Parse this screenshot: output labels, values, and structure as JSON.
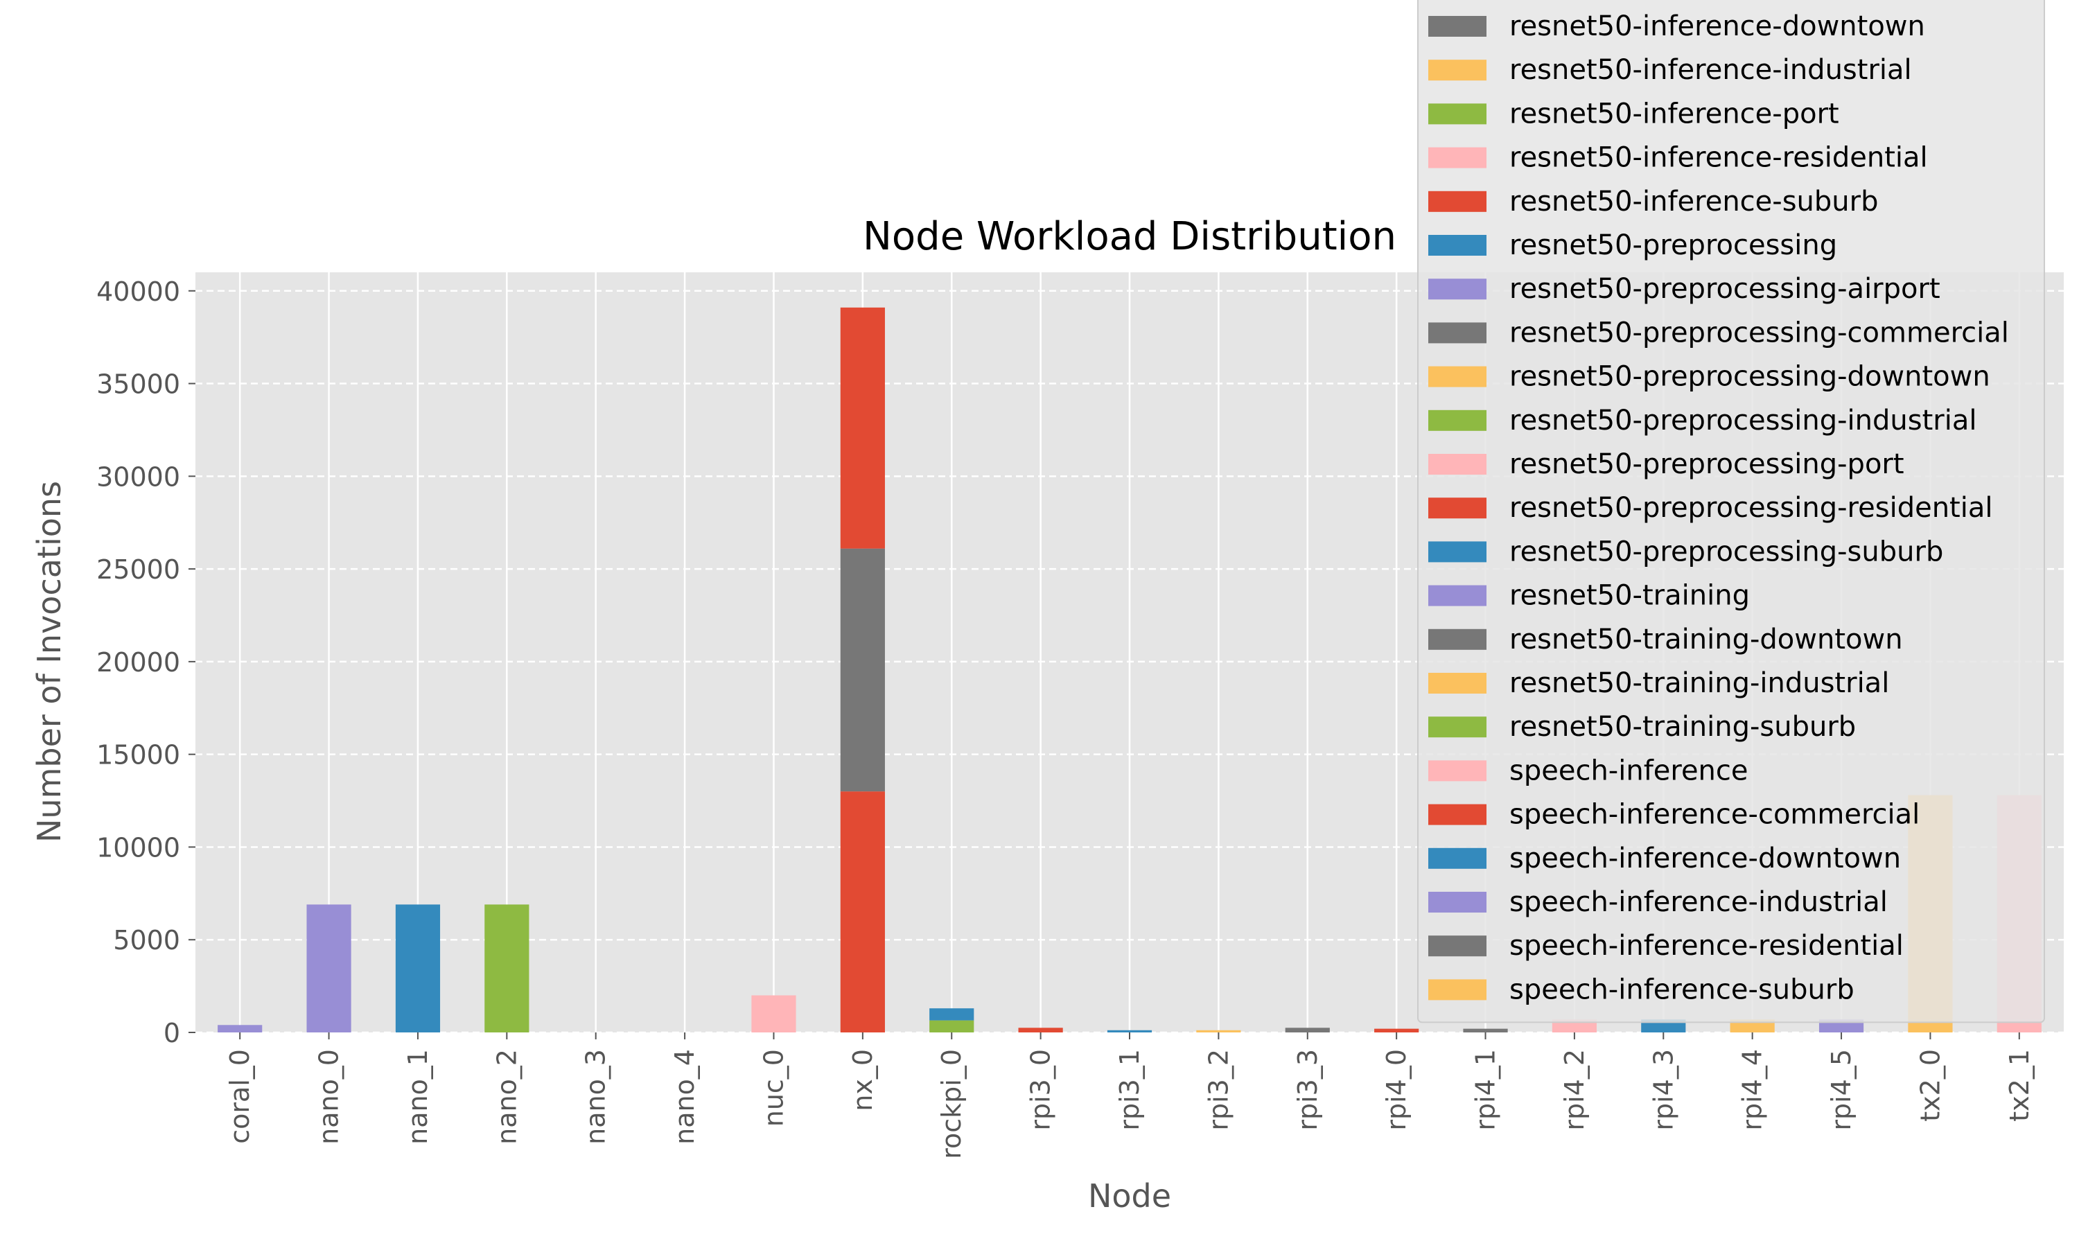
{
  "chart_data": {
    "type": "bar",
    "stacked": true,
    "title": "Node Workload Distribution",
    "xlabel": "Node",
    "ylabel": "Number of Invocations",
    "ylim": [
      0,
      41000
    ],
    "yticks": [
      0,
      5000,
      10000,
      15000,
      20000,
      25000,
      30000,
      35000,
      40000
    ],
    "grid": true,
    "legend_position": "upper-right",
    "categories": [
      "coral_0",
      "nano_0",
      "nano_1",
      "nano_2",
      "nano_3",
      "nano_4",
      "nuc_0",
      "nx_0",
      "rockpi_0",
      "rpi3_0",
      "rpi3_1",
      "rpi3_2",
      "rpi3_3",
      "rpi4_0",
      "rpi4_1",
      "rpi4_2",
      "rpi4_3",
      "rpi4_4",
      "rpi4_5",
      "tx2_0",
      "tx2_1"
    ],
    "legend_entries": [
      {
        "name": "resnet50-inference-downtown",
        "color": "#777777"
      },
      {
        "name": "resnet50-inference-industrial",
        "color": "#FBC15E"
      },
      {
        "name": "resnet50-inference-port",
        "color": "#8EBA42"
      },
      {
        "name": "resnet50-inference-residential",
        "color": "#FFB5B8"
      },
      {
        "name": "resnet50-inference-suburb",
        "color": "#E24A33"
      },
      {
        "name": "resnet50-preprocessing",
        "color": "#348ABD"
      },
      {
        "name": "resnet50-preprocessing-airport",
        "color": "#988ED5"
      },
      {
        "name": "resnet50-preprocessing-commercial",
        "color": "#777777"
      },
      {
        "name": "resnet50-preprocessing-downtown",
        "color": "#FBC15E"
      },
      {
        "name": "resnet50-preprocessing-industrial",
        "color": "#8EBA42"
      },
      {
        "name": "resnet50-preprocessing-port",
        "color": "#FFB5B8"
      },
      {
        "name": "resnet50-preprocessing-residential",
        "color": "#E24A33"
      },
      {
        "name": "resnet50-preprocessing-suburb",
        "color": "#348ABD"
      },
      {
        "name": "resnet50-training",
        "color": "#988ED5"
      },
      {
        "name": "resnet50-training-downtown",
        "color": "#777777"
      },
      {
        "name": "resnet50-training-industrial",
        "color": "#FBC15E"
      },
      {
        "name": "resnet50-training-suburb",
        "color": "#8EBA42"
      },
      {
        "name": "speech-inference",
        "color": "#FFB5B8"
      },
      {
        "name": "speech-inference-commercial",
        "color": "#E24A33"
      },
      {
        "name": "speech-inference-downtown",
        "color": "#348ABD"
      },
      {
        "name": "speech-inference-industrial",
        "color": "#988ED5"
      },
      {
        "name": "speech-inference-residential",
        "color": "#777777"
      },
      {
        "name": "speech-inference-suburb",
        "color": "#FBC15E"
      }
    ],
    "stacks": [
      {
        "category": "coral_0",
        "segments": [
          {
            "value": 400,
            "color": "#988ED5"
          }
        ]
      },
      {
        "category": "nano_0",
        "segments": [
          {
            "value": 6900,
            "color": "#988ED5"
          }
        ]
      },
      {
        "category": "nano_1",
        "segments": [
          {
            "value": 6900,
            "color": "#348ABD"
          }
        ]
      },
      {
        "category": "nano_2",
        "segments": [
          {
            "value": 6900,
            "color": "#8EBA42"
          }
        ]
      },
      {
        "category": "nano_3",
        "segments": []
      },
      {
        "category": "nano_4",
        "segments": []
      },
      {
        "category": "nuc_0",
        "segments": [
          {
            "value": 2000,
            "color": "#FFB5B8"
          }
        ]
      },
      {
        "category": "nx_0",
        "segments": [
          {
            "value": 13000,
            "color": "#E24A33"
          },
          {
            "value": 13100,
            "color": "#777777"
          },
          {
            "value": 13000,
            "color": "#E24A33"
          }
        ]
      },
      {
        "category": "rockpi_0",
        "segments": [
          {
            "value": 650,
            "color": "#8EBA42"
          },
          {
            "value": 650,
            "color": "#348ABD"
          }
        ]
      },
      {
        "category": "rpi3_0",
        "segments": [
          {
            "value": 250,
            "color": "#E24A33"
          }
        ]
      },
      {
        "category": "rpi3_1",
        "segments": [
          {
            "value": 120,
            "color": "#348ABD"
          }
        ]
      },
      {
        "category": "rpi3_2",
        "segments": [
          {
            "value": 120,
            "color": "#FBC15E"
          }
        ]
      },
      {
        "category": "rpi3_3",
        "segments": [
          {
            "value": 250,
            "color": "#777777"
          }
        ]
      },
      {
        "category": "rpi4_0",
        "segments": [
          {
            "value": 200,
            "color": "#E24A33"
          }
        ]
      },
      {
        "category": "rpi4_1",
        "segments": [
          {
            "value": 200,
            "color": "#777777"
          }
        ]
      },
      {
        "category": "rpi4_2",
        "segments": [
          {
            "value": 700,
            "color": "#FFB5B8"
          }
        ]
      },
      {
        "category": "rpi4_3",
        "segments": [
          {
            "value": 700,
            "color": "#348ABD"
          }
        ]
      },
      {
        "category": "rpi4_4",
        "segments": [
          {
            "value": 700,
            "color": "#FBC15E"
          }
        ]
      },
      {
        "category": "rpi4_5",
        "segments": [
          {
            "value": 700,
            "color": "#988ED5"
          }
        ]
      },
      {
        "category": "tx2_0",
        "segments": [
          {
            "value": 700,
            "color": "#FBC15E"
          },
          {
            "value": 12100,
            "color": "#FBC15E"
          }
        ]
      },
      {
        "category": "tx2_1",
        "segments": [
          {
            "value": 700,
            "color": "#FFB5B8"
          },
          {
            "value": 12100,
            "color": "#FFB5B8"
          }
        ]
      }
    ]
  }
}
